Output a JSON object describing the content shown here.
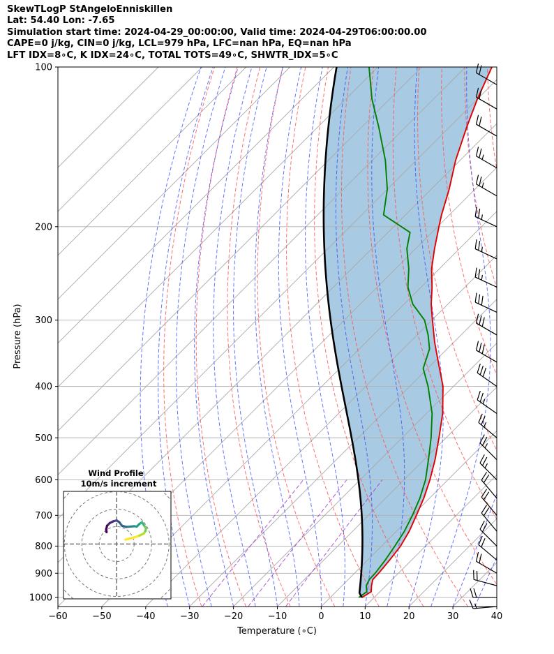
{
  "header": {
    "line1": "SkewTLogP StAngeloEnniskillen",
    "line2": "Lat: 54.40   Lon: -7.65",
    "line3": "Simulation start time: 2024-04-29_00:00:00, Valid time: 2024-04-29T06:00:00.00",
    "line4": "CAPE=0 j/kg, CIN=0 j/kg, LCL=979 hPa, LFC=nan hPa, EQ=nan hPa",
    "line5": "LFT IDX=8∘C, K IDX=24∘C, TOTAL TOTS=49∘C, SHWTR_IDX=5∘C"
  },
  "chart_data": {
    "type": "skew-t log-p",
    "xlabel": "Temperature (∘C)",
    "ylabel": "Pressure (hPa)",
    "xlim": [
      -60,
      40
    ],
    "ylim": [
      1040,
      100
    ],
    "x_ticks": [
      -60,
      -50,
      -40,
      -30,
      -20,
      -10,
      0,
      10,
      20,
      30,
      40
    ],
    "y_ticks": [
      1000,
      900,
      800,
      700,
      600,
      500,
      400,
      300,
      200,
      100
    ],
    "grid": true,
    "log_pressure": true,
    "skew_degrees": 45,
    "colors": {
      "temperature": "#e00000",
      "dewpoint": "#008000",
      "parcel": "#000000",
      "cape_shading": "#a3c7e0",
      "dry_adiabats": "#ff4444",
      "moist_adiabats": "#3344ff",
      "mixing_ratio": "#9933cc",
      "isotherms": "#999999"
    },
    "series": [
      {
        "key": "temperature",
        "p": [
          1000,
          975,
          950,
          925,
          900,
          850,
          800,
          750,
          700,
          650,
          600,
          550,
          500,
          450,
          400,
          360,
          330,
          300,
          280,
          260,
          240,
          220,
          200,
          190,
          170,
          150,
          130,
          115,
          100
        ],
        "t": [
          7.2,
          8.0,
          6.7,
          5.6,
          5.5,
          5.0,
          4.3,
          2.9,
          0.9,
          -1.3,
          -4.1,
          -7.5,
          -11.6,
          -16.3,
          -22.4,
          -29.0,
          -34.4,
          -39.9,
          -43.8,
          -47.5,
          -51.8,
          -55.7,
          -59.7,
          -61.8,
          -65.9,
          -71.0,
          -76.0,
          -80.0,
          -84.0
        ]
      },
      {
        "key": "dewpoint",
        "p": [
          1000,
          975,
          950,
          925,
          900,
          850,
          800,
          750,
          700,
          650,
          600,
          550,
          500,
          450,
          400,
          370,
          340,
          320,
          300,
          280,
          260,
          240,
          220,
          205,
          190,
          170,
          150,
          130,
          115,
          100
        ],
        "t": [
          6.5,
          7.0,
          5.5,
          4.8,
          4.7,
          4.0,
          3.0,
          1.8,
          0.0,
          -2.2,
          -5.1,
          -9.0,
          -13.4,
          -18.7,
          -25.8,
          -31.0,
          -34.0,
          -37.5,
          -41.7,
          -48.0,
          -53.0,
          -57.0,
          -62.0,
          -65.0,
          -75.0,
          -80.0,
          -87.0,
          -96.0,
          -104.0,
          -112.0
        ]
      },
      {
        "key": "parcel",
        "p_start": 1000,
        "t_start": 7.2,
        "lcl_hpa": 979
      }
    ],
    "wind_barbs": [
      {
        "p": 1040,
        "speed": 15,
        "dir": 265
      },
      {
        "p": 1000,
        "speed": 20,
        "dir": 270
      },
      {
        "p": 950,
        "speed": 20,
        "dir": 285
      },
      {
        "p": 900,
        "speed": 20,
        "dir": 300
      },
      {
        "p": 850,
        "speed": 20,
        "dir": 310
      },
      {
        "p": 800,
        "speed": 20,
        "dir": 315
      },
      {
        "p": 750,
        "speed": 20,
        "dir": 320
      },
      {
        "p": 700,
        "speed": 20,
        "dir": 320
      },
      {
        "p": 650,
        "speed": 20,
        "dir": 320
      },
      {
        "p": 600,
        "speed": 25,
        "dir": 315
      },
      {
        "p": 550,
        "speed": 25,
        "dir": 315
      },
      {
        "p": 500,
        "speed": 25,
        "dir": 310
      },
      {
        "p": 450,
        "speed": 25,
        "dir": 305
      },
      {
        "p": 400,
        "speed": 30,
        "dir": 305
      },
      {
        "p": 360,
        "speed": 30,
        "dir": 300
      },
      {
        "p": 320,
        "speed": 30,
        "dir": 300
      },
      {
        "p": 290,
        "speed": 30,
        "dir": 295
      },
      {
        "p": 260,
        "speed": 25,
        "dir": 295
      },
      {
        "p": 230,
        "speed": 25,
        "dir": 295
      },
      {
        "p": 200,
        "speed": 25,
        "dir": 295
      },
      {
        "p": 175,
        "speed": 25,
        "dir": 300
      },
      {
        "p": 155,
        "speed": 25,
        "dir": 300
      },
      {
        "p": 135,
        "speed": 20,
        "dir": 300
      },
      {
        "p": 120,
        "speed": 20,
        "dir": 300
      },
      {
        "p": 108,
        "speed": 20,
        "dir": 300
      }
    ],
    "inset": {
      "title_line1": "Wind Profile",
      "title_line2": "10m/s increment",
      "ring_step_ms": 10,
      "colormap": "viridis",
      "hodograph_uv": [
        [
          5.0,
          2.5
        ],
        [
          7.0,
          3.0
        ],
        [
          10.0,
          3.8
        ],
        [
          13.0,
          4.8
        ],
        [
          15.5,
          6.0
        ],
        [
          16.5,
          7.5
        ],
        [
          16.8,
          9.0
        ],
        [
          15.5,
          11.0
        ],
        [
          14.5,
          12.5
        ],
        [
          13.0,
          11.5
        ],
        [
          11.5,
          10.0
        ],
        [
          10.0,
          10.2
        ],
        [
          8.0,
          10.0
        ],
        [
          5.5,
          9.8
        ],
        [
          3.0,
          10.5
        ],
        [
          1.5,
          12.5
        ],
        [
          0.0,
          13.5
        ],
        [
          -2.0,
          13.0
        ],
        [
          -4.0,
          12.0
        ],
        [
          -5.5,
          10.5
        ],
        [
          -6.0,
          8.5
        ],
        [
          -5.8,
          6.8
        ]
      ]
    }
  }
}
